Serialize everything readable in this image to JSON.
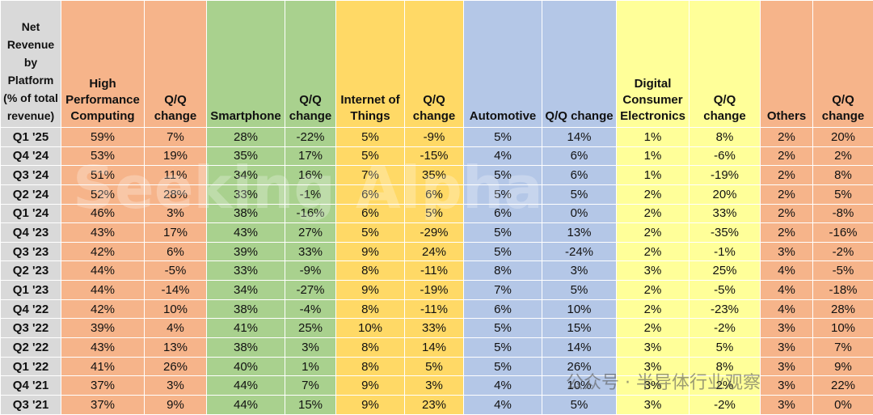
{
  "table": {
    "header": [
      "Net Revenue by Platform (% of total revenue)",
      "High Performance Computing",
      "Q/Q change",
      "Smartphone",
      "Q/Q change",
      "Internet of Things",
      "Q/Q change",
      "Automotive",
      "Q/Q change",
      "Digital Consumer Electronics",
      "Q/Q change",
      "Others",
      "Q/Q change"
    ],
    "rows": [
      [
        "Q1 '25",
        "59%",
        "7%",
        "28%",
        "-22%",
        "5%",
        "-9%",
        "5%",
        "14%",
        "1%",
        "8%",
        "2%",
        "20%"
      ],
      [
        "Q4 '24",
        "53%",
        "19%",
        "35%",
        "17%",
        "5%",
        "-15%",
        "4%",
        "6%",
        "1%",
        "-6%",
        "2%",
        "2%"
      ],
      [
        "Q3 '24",
        "51%",
        "11%",
        "34%",
        "16%",
        "7%",
        "35%",
        "5%",
        "6%",
        "1%",
        "-19%",
        "2%",
        "8%"
      ],
      [
        "Q2 '24",
        "52%",
        "28%",
        "33%",
        "-1%",
        "6%",
        "6%",
        "5%",
        "5%",
        "2%",
        "20%",
        "2%",
        "5%"
      ],
      [
        "Q1 '24",
        "46%",
        "3%",
        "38%",
        "-16%",
        "6%",
        "5%",
        "6%",
        "0%",
        "2%",
        "33%",
        "2%",
        "-8%"
      ],
      [
        "Q4 '23",
        "43%",
        "17%",
        "43%",
        "27%",
        "5%",
        "-29%",
        "5%",
        "13%",
        "2%",
        "-35%",
        "2%",
        "-16%"
      ],
      [
        "Q3 '23",
        "42%",
        "6%",
        "39%",
        "33%",
        "9%",
        "24%",
        "5%",
        "-24%",
        "2%",
        "-1%",
        "3%",
        "-2%"
      ],
      [
        "Q2 '23",
        "44%",
        "-5%",
        "33%",
        "-9%",
        "8%",
        "-11%",
        "8%",
        "3%",
        "3%",
        "25%",
        "4%",
        "-5%"
      ],
      [
        "Q1 '23",
        "44%",
        "-14%",
        "34%",
        "-27%",
        "9%",
        "-19%",
        "7%",
        "5%",
        "2%",
        "-5%",
        "4%",
        "-18%"
      ],
      [
        "Q4 '22",
        "42%",
        "10%",
        "38%",
        "-4%",
        "8%",
        "-11%",
        "6%",
        "10%",
        "2%",
        "-23%",
        "4%",
        "28%"
      ],
      [
        "Q3 '22",
        "39%",
        "4%",
        "41%",
        "25%",
        "10%",
        "33%",
        "5%",
        "15%",
        "2%",
        "-2%",
        "3%",
        "10%"
      ],
      [
        "Q2 '22",
        "43%",
        "13%",
        "38%",
        "3%",
        "8%",
        "14%",
        "5%",
        "14%",
        "3%",
        "5%",
        "3%",
        "7%"
      ],
      [
        "Q1 '22",
        "41%",
        "26%",
        "40%",
        "1%",
        "8%",
        "5%",
        "5%",
        "26%",
        "3%",
        "8%",
        "3%",
        "9%"
      ],
      [
        "Q4 '21",
        "37%",
        "3%",
        "44%",
        "7%",
        "9%",
        "3%",
        "4%",
        "10%",
        "3%",
        "2%",
        "3%",
        "22%"
      ],
      [
        "Q3 '21",
        "37%",
        "9%",
        "44%",
        "15%",
        "9%",
        "23%",
        "4%",
        "5%",
        "3%",
        "-2%",
        "3%",
        "0%"
      ]
    ]
  },
  "watermarks": [
    "Seeking Alpha",
    "公众号 · 半导体行业观察"
  ]
}
